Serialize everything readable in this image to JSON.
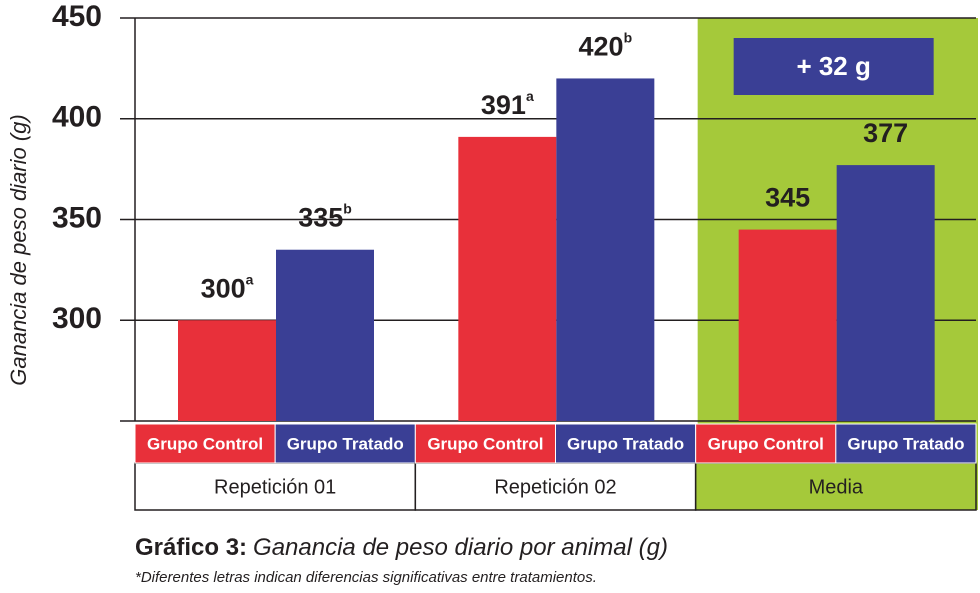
{
  "chart_data": {
    "type": "bar",
    "y_label": "Ganancia de peso diario (g)",
    "categories": [
      "Repetición 01",
      "Repetición 02",
      "Media"
    ],
    "series": [
      {
        "name": "Grupo Control",
        "color": "#e8303a",
        "values": [
          300,
          391,
          345
        ],
        "superscripts": [
          "a",
          "a",
          null
        ]
      },
      {
        "name": "Grupo Tratado",
        "color": "#3a3f95",
        "values": [
          335,
          420,
          377
        ],
        "superscripts": [
          "b",
          "b",
          null
        ]
      }
    ],
    "ylim": [
      250,
      450
    ],
    "yticks": [
      300,
      350,
      400,
      450
    ],
    "grid": true,
    "highlight_category": "Media",
    "highlight_color": "#a5c93a",
    "annotation": "+ 32 g",
    "caption_label": "Gráfico 3:",
    "caption_text": "Ganancia de peso diario por animal (g)",
    "footnote": "*Diferentes letras indican diferencias significativas entre tratamientos."
  }
}
